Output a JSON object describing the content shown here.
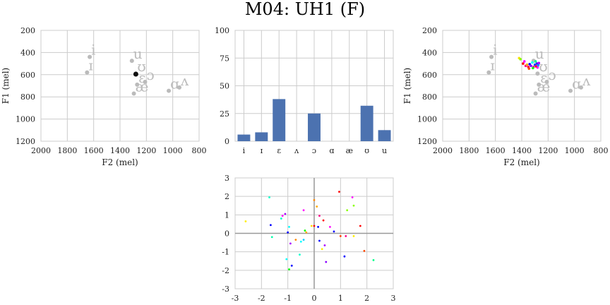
{
  "title": "M04: UH1 (F)",
  "colors": {
    "grid": "#cccccc",
    "frame": "#cccccc",
    "axis_text": "#222222",
    "vowel_gray": "#bbbbbb",
    "current_point": "#111111",
    "bar": "#4c72b0",
    "zero_line": "#999999"
  },
  "chart_data": [
    {
      "type": "scatter",
      "xlabel": "F2 (mel)",
      "ylabel": "F1 (mel)",
      "xlim": [
        2000,
        800
      ],
      "ylim": [
        1200,
        200
      ],
      "xticks": [
        2000,
        1800,
        1600,
        1400,
        1200,
        1000,
        800
      ],
      "yticks": [
        200,
        400,
        600,
        800,
        1000,
        1200
      ],
      "vowels": [
        {
          "label": "i",
          "x": 1630,
          "y": 440
        },
        {
          "label": "ɪ",
          "x": 1650,
          "y": 580
        },
        {
          "label": "u",
          "x": 1310,
          "y": 475
        },
        {
          "label": "ʊ",
          "x": 1280,
          "y": 590
        },
        {
          "label": "ɛ",
          "x": 1270,
          "y": 690
        },
        {
          "label": "ɔ",
          "x": 1210,
          "y": 665
        },
        {
          "label": "æ",
          "x": 1295,
          "y": 770
        },
        {
          "label": "ɑ",
          "x": 1030,
          "y": 745
        },
        {
          "label": "ʌ",
          "x": 950,
          "y": 715
        }
      ],
      "current": {
        "x": 1280,
        "y": 595
      }
    },
    {
      "type": "bar",
      "categories": [
        "i",
        "ɪ",
        "ɛ",
        "ʌ",
        "ɔ",
        "ɑ",
        "æ",
        "ʊ",
        "u"
      ],
      "values": [
        6,
        8,
        38,
        0,
        25,
        0,
        0,
        32,
        10
      ],
      "ylim": [
        0,
        100
      ],
      "yticks": [
        0,
        25,
        50,
        75,
        100
      ]
    },
    {
      "type": "scatter",
      "xlabel": "F2 (mel)",
      "ylabel": "F1 (mel)",
      "xlim": [
        2000,
        800
      ],
      "ylim": [
        1200,
        200
      ],
      "xticks": [
        2000,
        1800,
        1600,
        1400,
        1200,
        1000,
        800
      ],
      "yticks": [
        200,
        400,
        600,
        800,
        1000,
        1200
      ],
      "vowels": [
        {
          "label": "i",
          "x": 1630,
          "y": 440
        },
        {
          "label": "ɪ",
          "x": 1650,
          "y": 580
        },
        {
          "label": "u",
          "x": 1310,
          "y": 475
        },
        {
          "label": "ʊ",
          "x": 1280,
          "y": 590
        },
        {
          "label": "ɛ",
          "x": 1270,
          "y": 690
        },
        {
          "label": "ɔ",
          "x": 1210,
          "y": 665
        },
        {
          "label": "æ",
          "x": 1295,
          "y": 770
        },
        {
          "label": "ɑ",
          "x": 1030,
          "y": 745
        },
        {
          "label": "ʌ",
          "x": 950,
          "y": 715
        }
      ],
      "tokens": [
        {
          "x": 1420,
          "y": 450,
          "color": "#ffdd00"
        },
        {
          "x": 1410,
          "y": 460,
          "color": "#88ff00"
        },
        {
          "x": 1390,
          "y": 500,
          "color": "#ff0000"
        },
        {
          "x": 1380,
          "y": 480,
          "color": "#ff00ff"
        },
        {
          "x": 1370,
          "y": 520,
          "color": "#ff0088"
        },
        {
          "x": 1360,
          "y": 510,
          "color": "#ffaa00"
        },
        {
          "x": 1350,
          "y": 530,
          "color": "#ff0044"
        },
        {
          "x": 1340,
          "y": 505,
          "color": "#0000ff"
        },
        {
          "x": 1330,
          "y": 520,
          "color": "#8800ff"
        },
        {
          "x": 1320,
          "y": 490,
          "color": "#00ffff"
        },
        {
          "x": 1310,
          "y": 530,
          "color": "#ff00aa"
        },
        {
          "x": 1300,
          "y": 510,
          "color": "#0044ff"
        },
        {
          "x": 1295,
          "y": 480,
          "color": "#00ff88"
        },
        {
          "x": 1290,
          "y": 525,
          "color": "#ff0000"
        },
        {
          "x": 1285,
          "y": 500,
          "color": "#4400ff"
        },
        {
          "x": 1280,
          "y": 535,
          "color": "#ff00ff"
        },
        {
          "x": 1275,
          "y": 515,
          "color": "#0088ff"
        },
        {
          "x": 1270,
          "y": 495,
          "color": "#aa00ff"
        },
        {
          "x": 1345,
          "y": 545,
          "color": "#ff4400"
        },
        {
          "x": 1315,
          "y": 540,
          "color": "#00ff00"
        }
      ]
    },
    {
      "type": "scatter",
      "xlim": [
        -3,
        3
      ],
      "ylim": [
        -3,
        3
      ],
      "xticks": [
        -3,
        -2,
        -1,
        0,
        1,
        2,
        3
      ],
      "yticks": [
        -3,
        -2,
        -1,
        0,
        1,
        2,
        3
      ],
      "points": [
        {
          "x": -2.6,
          "y": 0.65,
          "color": "#ffee00"
        },
        {
          "x": -1.7,
          "y": 1.95,
          "color": "#00ffcc"
        },
        {
          "x": -1.65,
          "y": 0.45,
          "color": "#0000ff"
        },
        {
          "x": -1.6,
          "y": -0.2,
          "color": "#00ffaa"
        },
        {
          "x": -1.25,
          "y": 0.8,
          "color": "#00ffcc"
        },
        {
          "x": -1.2,
          "y": 0.95,
          "color": "#ff00ff"
        },
        {
          "x": -1.1,
          "y": 1.05,
          "color": "#aa00ff"
        },
        {
          "x": -1.05,
          "y": -1.4,
          "color": "#00ffff"
        },
        {
          "x": -1.0,
          "y": 0.05,
          "color": "#0000ff"
        },
        {
          "x": -0.95,
          "y": 0.35,
          "color": "#00ffff"
        },
        {
          "x": -0.95,
          "y": -1.95,
          "color": "#00ff00"
        },
        {
          "x": -0.9,
          "y": -0.55,
          "color": "#aa00ff"
        },
        {
          "x": -0.85,
          "y": -1.75,
          "color": "#0000ff"
        },
        {
          "x": -0.7,
          "y": -0.35,
          "color": "#ff8800"
        },
        {
          "x": -0.55,
          "y": -1.15,
          "color": "#00ffcc"
        },
        {
          "x": -0.5,
          "y": -0.45,
          "color": "#00ffff"
        },
        {
          "x": -0.4,
          "y": 1.25,
          "color": "#ff00ff"
        },
        {
          "x": -0.4,
          "y": -0.35,
          "color": "#00ccff"
        },
        {
          "x": -0.35,
          "y": 0.15,
          "color": "#00ff00"
        },
        {
          "x": -0.3,
          "y": 0.05,
          "color": "#ffaa00"
        },
        {
          "x": -0.1,
          "y": 0.4,
          "color": "#ffdd00"
        },
        {
          "x": 0.0,
          "y": 1.8,
          "color": "#ff8800"
        },
        {
          "x": 0.0,
          "y": 0.4,
          "color": "#ff0000"
        },
        {
          "x": 0.1,
          "y": 1.45,
          "color": "#ffaa00"
        },
        {
          "x": 0.15,
          "y": 0.35,
          "color": "#0000ff"
        },
        {
          "x": 0.2,
          "y": 0.95,
          "color": "#ff0088"
        },
        {
          "x": 0.2,
          "y": -0.4,
          "color": "#0000ff"
        },
        {
          "x": 0.3,
          "y": -0.85,
          "color": "#ffee00"
        },
        {
          "x": 0.35,
          "y": 0.7,
          "color": "#ff0000"
        },
        {
          "x": 0.4,
          "y": -0.65,
          "color": "#aa00ff"
        },
        {
          "x": 0.45,
          "y": -1.55,
          "color": "#8800ff"
        },
        {
          "x": 0.6,
          "y": 0.35,
          "color": "#ff00ff"
        },
        {
          "x": 0.75,
          "y": 0.1,
          "color": "#0000ff"
        },
        {
          "x": 0.95,
          "y": 2.25,
          "color": "#ff0000"
        },
        {
          "x": 1.0,
          "y": -0.15,
          "color": "#ff4400"
        },
        {
          "x": 1.15,
          "y": -1.25,
          "color": "#0000ff"
        },
        {
          "x": 1.2,
          "y": -0.15,
          "color": "#ff0088"
        },
        {
          "x": 1.25,
          "y": 1.25,
          "color": "#88ff00"
        },
        {
          "x": 1.45,
          "y": 1.95,
          "color": "#ff00ff"
        },
        {
          "x": 1.5,
          "y": 1.5,
          "color": "#88ff00"
        },
        {
          "x": 1.5,
          "y": -0.15,
          "color": "#ffee00"
        },
        {
          "x": 1.75,
          "y": 0.4,
          "color": "#ff0000"
        },
        {
          "x": 1.9,
          "y": -0.95,
          "color": "#ff4400"
        },
        {
          "x": 2.25,
          "y": -1.45,
          "color": "#00ff88"
        }
      ]
    }
  ]
}
